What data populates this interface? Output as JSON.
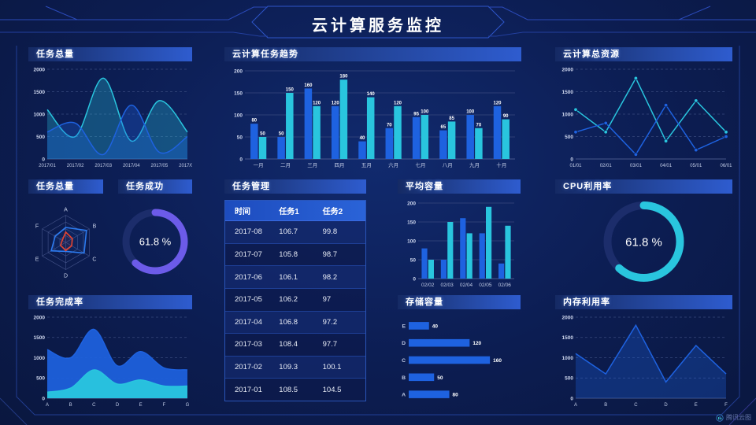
{
  "page": {
    "title": "云计算服务监控",
    "watermark": "腾讯云图"
  },
  "panels": {
    "tasks_total_top": {
      "title": "任务总量"
    },
    "task_trend": {
      "title": "云计算任务趋势"
    },
    "cloud_resources": {
      "title": "云计算总资源"
    },
    "tasks_total_radar": {
      "title": "任务总量"
    },
    "task_success": {
      "title": "任务成功"
    },
    "task_management": {
      "title": "任务管理"
    },
    "avg_capacity": {
      "title": "平均容量"
    },
    "cpu_usage": {
      "title": "CPU利用率"
    },
    "completion_rate": {
      "title": "任务完成率"
    },
    "storage_capacity": {
      "title": "存储容量"
    },
    "memory_usage": {
      "title": "内存利用率"
    }
  },
  "colors": {
    "blue": "#1E62E0",
    "cyan": "#29C5DE",
    "blue2": "#2C7BF0",
    "red": "#E8432E",
    "purple": "#6C5BE8",
    "track": "#1C2D6B",
    "grid": "#39497E",
    "axis": "#5B6A9D",
    "tick": "#D2DAF0",
    "label": "#C2CCE6"
  },
  "table": {
    "columns": [
      "时间",
      "任务1",
      "任务2"
    ],
    "rows": [
      [
        "2017-08",
        "106.7",
        "99.8"
      ],
      [
        "2017-07",
        "105.8",
        "98.7"
      ],
      [
        "2017-06",
        "106.1",
        "98.2"
      ],
      [
        "2017-05",
        "106.2",
        "97"
      ],
      [
        "2017-04",
        "106.8",
        "97.2"
      ],
      [
        "2017-03",
        "108.4",
        "97.7"
      ],
      [
        "2017-02",
        "109.3",
        "100.1"
      ],
      [
        "2017-01",
        "108.5",
        "104.5"
      ]
    ]
  },
  "chart_data": [
    {
      "id": "tasks-total-area",
      "type": "area",
      "smooth": true,
      "x": [
        "2017/01",
        "2017/02",
        "2017/03",
        "2017/04",
        "2017/05",
        "2017/06"
      ],
      "series": [
        {
          "name": "series-cyan",
          "color": "cyan",
          "values": [
            1100,
            500,
            1800,
            400,
            1300,
            600
          ],
          "fill_opacity": 0.3
        },
        {
          "name": "series-blue",
          "color": "blue",
          "values": [
            600,
            800,
            100,
            1200,
            150,
            500
          ],
          "fill_opacity": 0.3
        }
      ],
      "ylim": [
        0,
        2000
      ],
      "yticks": [
        0,
        500,
        1000,
        1500,
        2000
      ],
      "grid": "dashed"
    },
    {
      "id": "task-trend-bar",
      "type": "bar",
      "categories": [
        "一月",
        "二月",
        "三月",
        "四月",
        "五月",
        "六月",
        "七月",
        "八月",
        "九月",
        "十月"
      ],
      "series": [
        {
          "name": "任务1",
          "color": "blue",
          "values": [
            80,
            50,
            160,
            120,
            40,
            70,
            95,
            65,
            100,
            120
          ]
        },
        {
          "name": "任务2",
          "color": "cyan",
          "values": [
            50,
            150,
            120,
            180,
            140,
            120,
            100,
            85,
            70,
            90
          ]
        }
      ],
      "ylim": [
        0,
        200
      ],
      "yticks": [
        0,
        50,
        100,
        150,
        200
      ],
      "value_labels": true,
      "grid": "solid"
    },
    {
      "id": "cloud-resources-line",
      "type": "line",
      "markers": true,
      "x": [
        "01/01",
        "02/01",
        "03/01",
        "04/01",
        "05/01",
        "06/01"
      ],
      "series": [
        {
          "name": "series-cyan",
          "color": "cyan",
          "values": [
            1100,
            600,
            1800,
            400,
            1300,
            600
          ]
        },
        {
          "name": "series-blue",
          "color": "blue",
          "values": [
            600,
            800,
            100,
            1200,
            200,
            500
          ]
        }
      ],
      "ylim": [
        0,
        2000
      ],
      "yticks": [
        0,
        500,
        1000,
        1500,
        2000
      ],
      "grid": "dashed"
    },
    {
      "id": "tasks-radar",
      "type": "radar",
      "axes": [
        "A",
        "B",
        "C",
        "D",
        "E",
        "F"
      ],
      "max": 100,
      "series": [
        {
          "name": "blue-shape",
          "color": "blue2",
          "values": [
            55,
            88,
            78,
            33,
            62,
            45
          ]
        },
        {
          "name": "red-shape",
          "color": "red",
          "values": [
            38,
            28,
            25,
            30,
            22,
            15
          ]
        }
      ]
    },
    {
      "id": "task-success-donut",
      "type": "donut",
      "value": 61.8,
      "label": "61.8 %",
      "color": "purple",
      "r": 37,
      "stroke": 9,
      "font": 13
    },
    {
      "id": "avg-capacity-bar",
      "type": "bar",
      "categories": [
        "02/02",
        "02/03",
        "02/04",
        "02/05",
        "02/06"
      ],
      "series": [
        {
          "name": "series-blue",
          "color": "blue",
          "values": [
            80,
            50,
            160,
            120,
            40
          ]
        },
        {
          "name": "series-cyan",
          "color": "cyan",
          "values": [
            50,
            150,
            120,
            190,
            140
          ]
        }
      ],
      "ylim": [
        0,
        200
      ],
      "yticks": [
        0,
        50,
        100,
        150,
        200
      ],
      "grid": "solid"
    },
    {
      "id": "cpu-donut",
      "type": "donut",
      "value": 61.8,
      "label": "61.8 %",
      "color": "cyan",
      "r": 46,
      "stroke": 10,
      "font": 15
    },
    {
      "id": "completion-area",
      "type": "area",
      "smooth": true,
      "x": [
        "A",
        "B",
        "C",
        "D",
        "E",
        "F",
        "G"
      ],
      "series": [
        {
          "name": "series-blue",
          "color": "blue",
          "values": [
            1200,
            1000,
            1700,
            800,
            1150,
            750,
            700
          ],
          "fill_opacity": 0.92
        },
        {
          "name": "series-cyan",
          "color": "cyan",
          "values": [
            150,
            250,
            700,
            350,
            450,
            300,
            300
          ],
          "fill_opacity": 0.95
        }
      ],
      "ylim": [
        0,
        2000
      ],
      "yticks": [
        0,
        500,
        1000,
        1500,
        2000
      ],
      "grid": "dashed"
    },
    {
      "id": "storage-hbar",
      "type": "hbar",
      "categories": [
        "E",
        "D",
        "C",
        "B",
        "A"
      ],
      "values": [
        40,
        120,
        160,
        50,
        80
      ],
      "xmax": 180,
      "color": "blue",
      "value_labels": true
    },
    {
      "id": "memory-line",
      "type": "line",
      "x": [
        "A",
        "B",
        "C",
        "D",
        "E",
        "F"
      ],
      "series": [
        {
          "name": "series-blue",
          "color": "blue",
          "values": [
            1100,
            600,
            1800,
            400,
            1300,
            600
          ],
          "area": true,
          "fill_opacity": 0.3
        }
      ],
      "ylim": [
        0,
        2000
      ],
      "yticks": [
        0,
        500,
        1000,
        1500,
        2000
      ],
      "grid": "dashed"
    }
  ]
}
